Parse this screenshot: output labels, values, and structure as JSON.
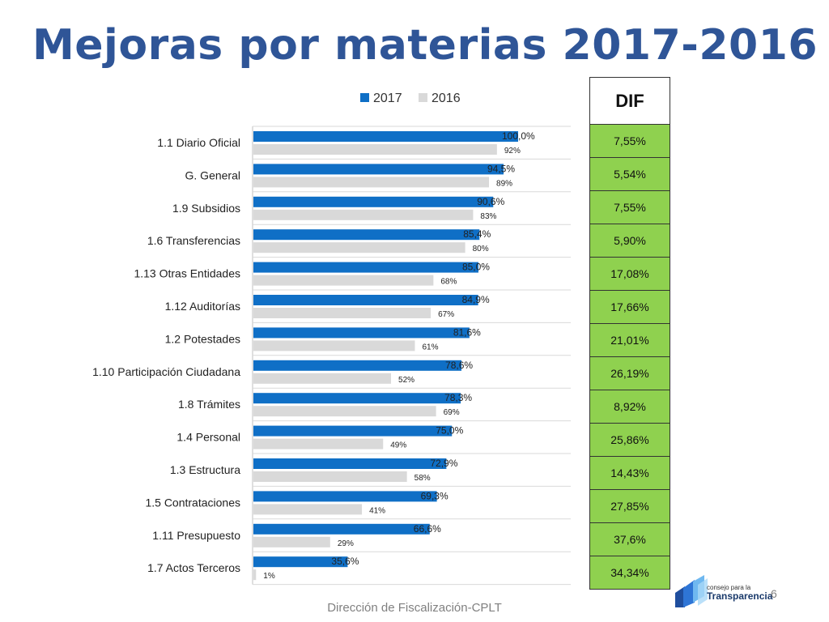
{
  "title": "Mejoras por materias 2017-2016",
  "footer": "Dirección de Fiscalización-CPLT",
  "page_number": "6",
  "logo": {
    "small_text": "consejo para la",
    "big_text": "Transparencia"
  },
  "dif_table": {
    "header": "DIF",
    "values": [
      "7,55%",
      "5,54%",
      "7,55%",
      "5,90%",
      "17,08%",
      "17,66%",
      "21,01%",
      "26,19%",
      "8,92%",
      "25,86%",
      "14,43%",
      "27,85%",
      "37,6%",
      "34,34%"
    ],
    "cell_color": "#8fd14f"
  },
  "chart_data": {
    "type": "bar",
    "orientation": "horizontal",
    "categories": [
      "1.1 Diario Oficial",
      "G. General",
      "1.9 Subsidios",
      "1.6 Transferencias",
      "1.13 Otras Entidades",
      "1.12 Auditorías",
      "1.2 Potestades",
      "1.10 Participación Ciudadana",
      "1.8 Trámites",
      "1.4 Personal",
      "1.3 Estructura",
      "1.5 Contrataciones",
      "1.11 Presupuesto",
      "1.7 Actos Terceros"
    ],
    "series": [
      {
        "name": "2017",
        "color": "#0f6fc6",
        "values": [
          100.0,
          94.5,
          90.6,
          85.4,
          85.0,
          84.9,
          81.6,
          78.6,
          78.3,
          75.0,
          72.9,
          69.3,
          66.6,
          35.6
        ],
        "labels": [
          "100,0%",
          "94,5%",
          "90,6%",
          "85,4%",
          "85,0%",
          "84,9%",
          "81,6%",
          "78,6%",
          "78,3%",
          "75,0%",
          "72,9%",
          "69,3%",
          "66,6%",
          "35,6%"
        ]
      },
      {
        "name": "2016",
        "color": "#d9d9d9",
        "values": [
          92,
          89,
          83,
          80,
          68,
          67,
          61,
          52,
          69,
          49,
          58,
          41,
          29,
          1
        ],
        "labels": [
          "92%",
          "89%",
          "83%",
          "80%",
          "68%",
          "67%",
          "61%",
          "52%",
          "69%",
          "49%",
          "58%",
          "41%",
          "29%",
          "1%"
        ]
      }
    ],
    "xlim": [
      0,
      100
    ],
    "legend_position": "top",
    "grid": "horizontal separators"
  }
}
